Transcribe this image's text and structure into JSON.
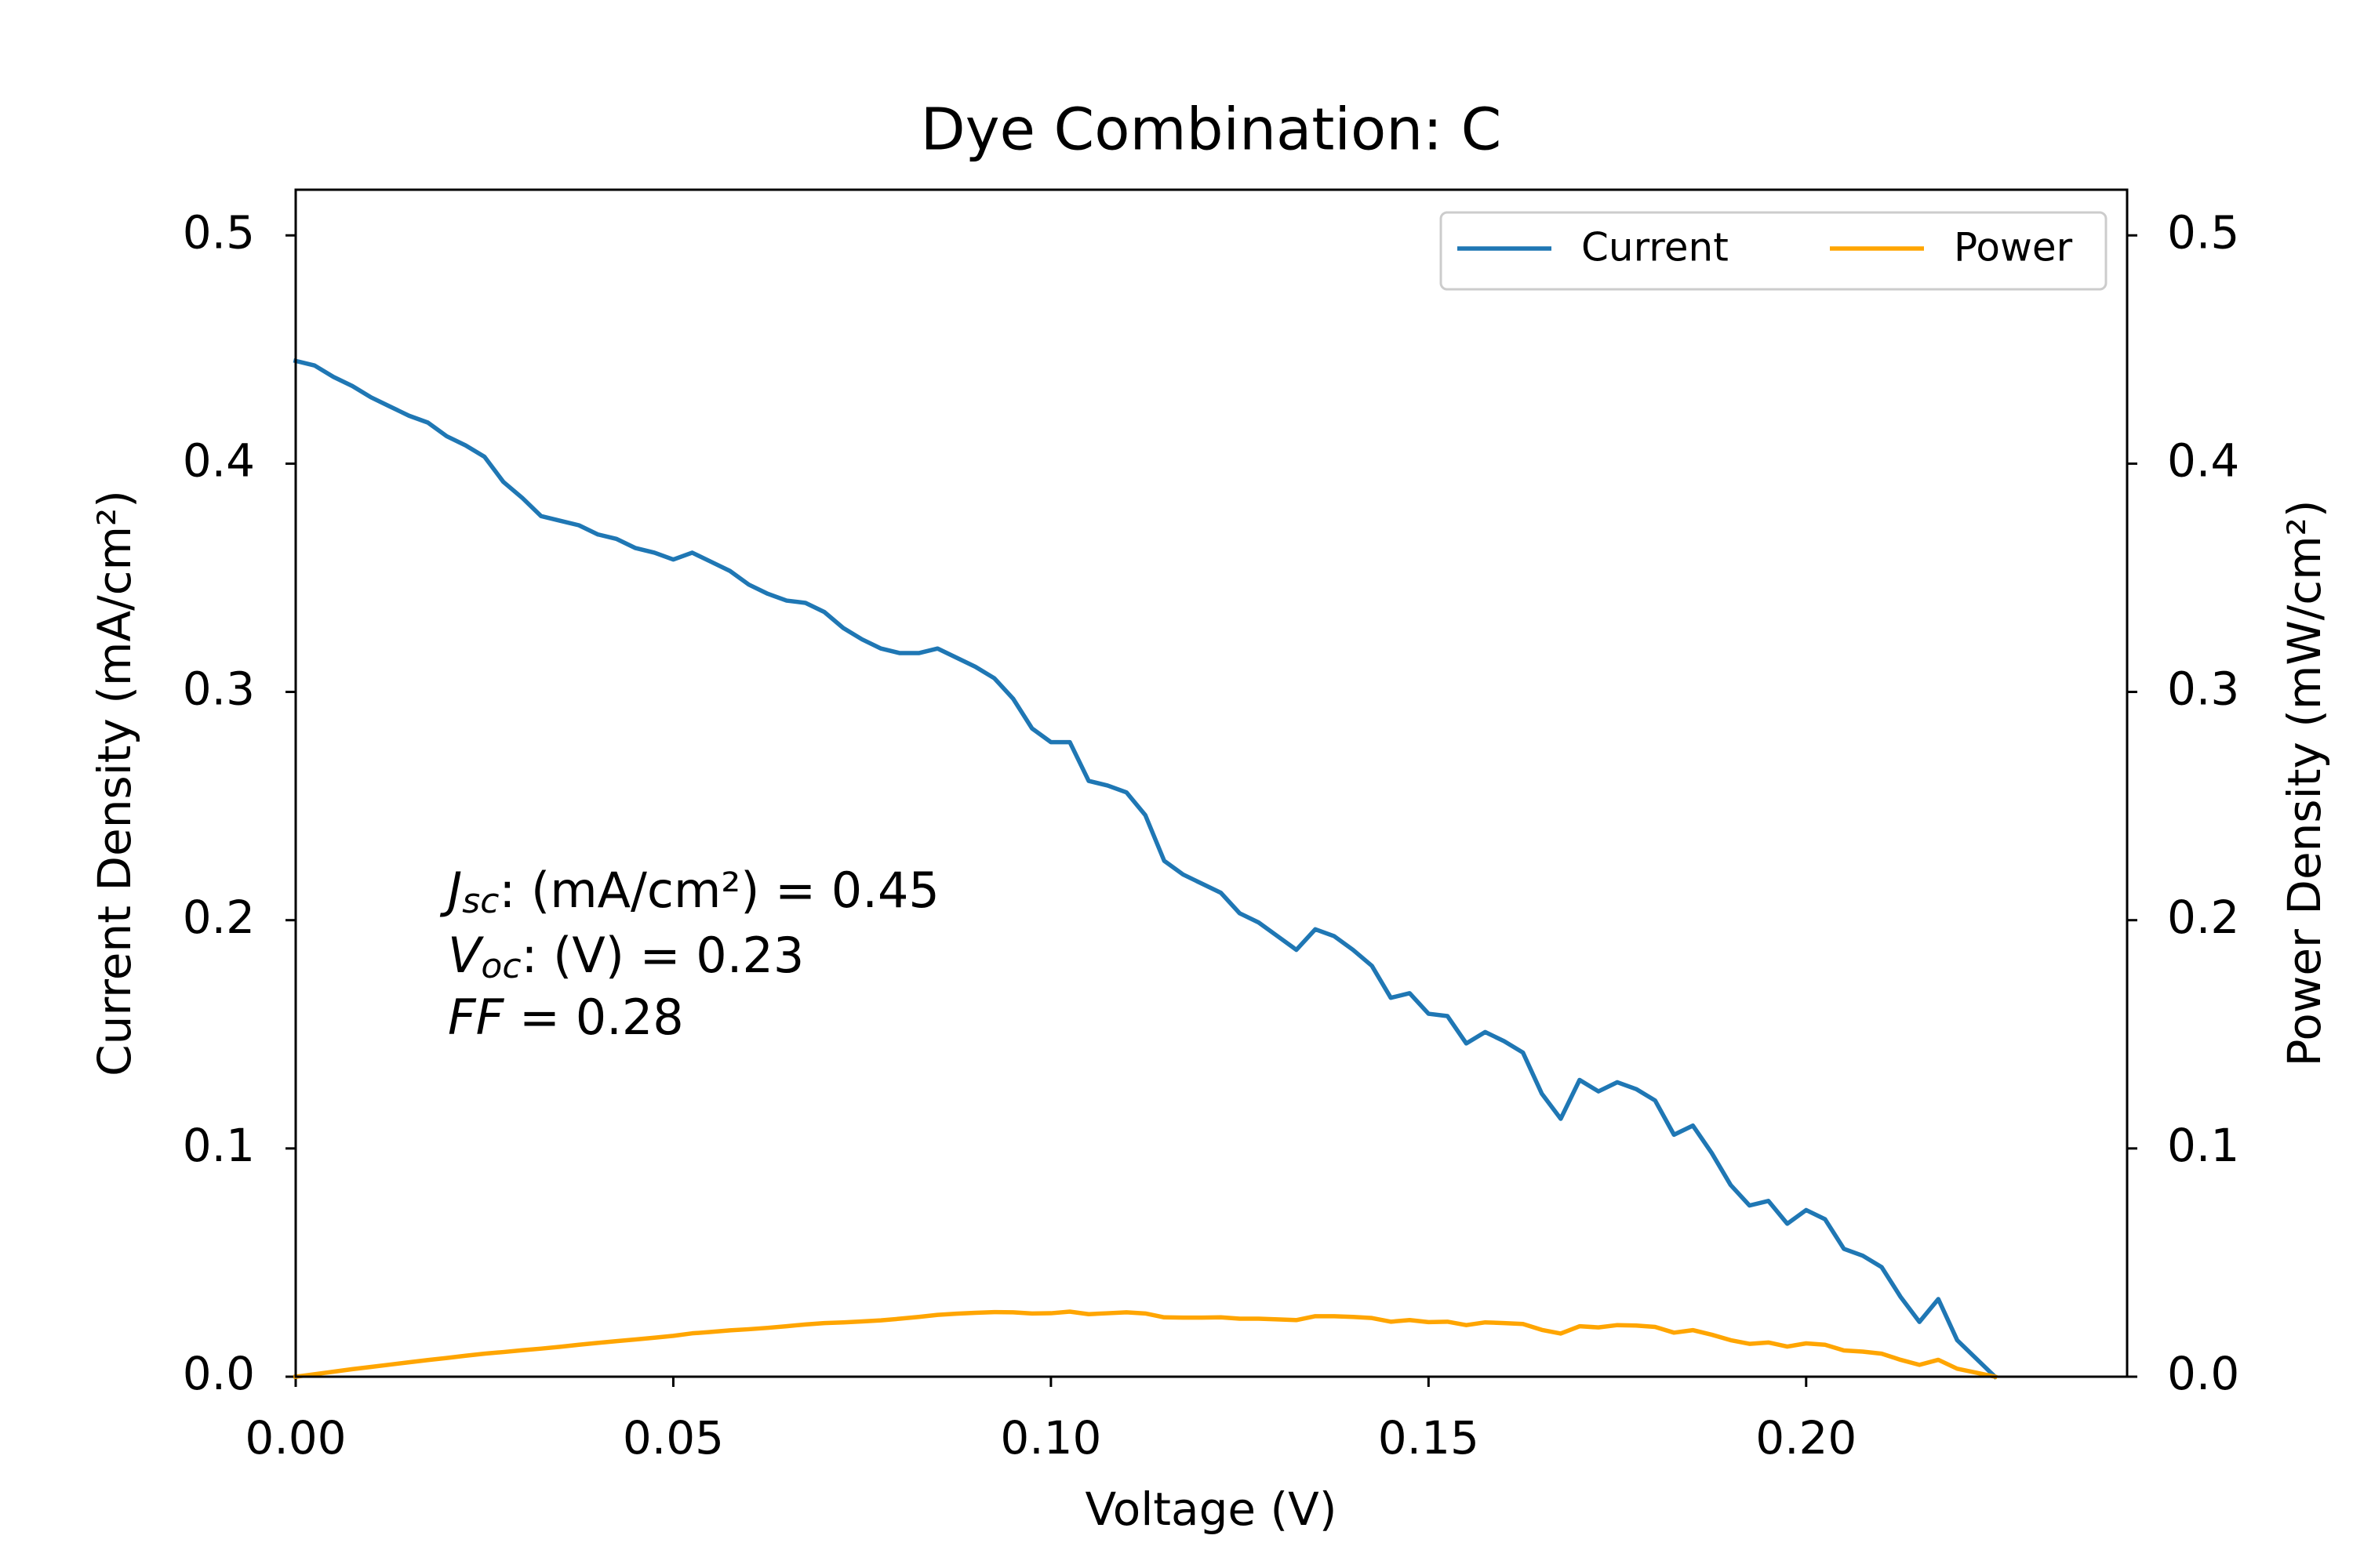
{
  "chart_data": {
    "type": "line",
    "title": "Dye Combination: C",
    "xlabel": "Voltage (V)",
    "ylabel": "Current Density (mA/cm²)",
    "y2label": "Power Density (mW/cm²)",
    "xlim": [
      0,
      0.2425
    ],
    "ylim": [
      0,
      0.52
    ],
    "y2lim": [
      0,
      0.52
    ],
    "xticks": [
      {
        "value": 0,
        "label": "0.00"
      },
      {
        "value": 0.05,
        "label": "0.05"
      },
      {
        "value": 0.1,
        "label": "0.10"
      },
      {
        "value": 0.15,
        "label": "0.15"
      },
      {
        "value": 0.2,
        "label": "0.20"
      }
    ],
    "yticks": [
      {
        "value": 0,
        "label": "0.0"
      },
      0.1,
      0.2,
      0.3,
      0.4,
      0.5
    ],
    "y2ticks": [
      {
        "value": 0,
        "label": "0.0"
      },
      0.1,
      0.2,
      0.3,
      0.4,
      0.5
    ],
    "grid": false,
    "legend": "upper right",
    "annotations": [
      {
        "main": "J",
        "sub": "sc",
        "rest": ": (mA/cm²) = 0.45"
      },
      {
        "main": "V",
        "sub": "oc",
        "rest": ": (V) = 0.23"
      },
      {
        "main": "FF",
        "rest": " = 0.28"
      }
    ],
    "x": [
      0,
      0.0025,
      0.005,
      0.0075,
      0.01,
      0.0125,
      0.015,
      0.0175,
      0.02,
      0.0225,
      0.025,
      0.0275,
      0.03,
      0.0325,
      0.035,
      0.0375,
      0.04,
      0.0425,
      0.045,
      0.0475,
      0.05,
      0.0525,
      0.055,
      0.0575,
      0.06,
      0.0625,
      0.065,
      0.0675,
      0.07,
      0.0725,
      0.075,
      0.0775,
      0.08,
      0.0825,
      0.085,
      0.0875,
      0.09,
      0.0925,
      0.095,
      0.0975,
      0.1,
      0.1025,
      0.105,
      0.1075,
      0.11,
      0.1125,
      0.115,
      0.1175,
      0.12,
      0.1225,
      0.125,
      0.1275,
      0.13,
      0.1325,
      0.135,
      0.1375,
      0.14,
      0.1425,
      0.145,
      0.1475,
      0.15,
      0.1525,
      0.155,
      0.1575,
      0.16,
      0.1625,
      0.165,
      0.1675,
      0.17,
      0.1725,
      0.175,
      0.1775,
      0.18,
      0.1825,
      0.185,
      0.1875,
      0.19,
      0.1925,
      0.195,
      0.1975,
      0.2,
      0.2025,
      0.205,
      0.2075,
      0.21,
      0.2125,
      0.215,
      0.2175,
      0.22,
      0.2225,
      0.225
    ],
    "series": [
      {
        "name": "Current",
        "color": "#1f77b4",
        "axis": "y",
        "values": [
          0.445,
          0.443,
          0.438,
          0.434,
          0.429,
          0.425,
          0.421,
          0.418,
          0.412,
          0.408,
          0.403,
          0.392,
          0.385,
          0.377,
          0.375,
          0.373,
          0.369,
          0.367,
          0.363,
          0.361,
          0.358,
          0.361,
          0.357,
          0.353,
          0.347,
          0.343,
          0.34,
          0.339,
          0.335,
          0.328,
          0.323,
          0.319,
          0.317,
          0.317,
          0.319,
          0.315,
          0.311,
          0.306,
          0.297,
          0.284,
          0.278,
          0.278,
          0.261,
          0.259,
          0.256,
          0.246,
          0.226,
          0.22,
          0.216,
          0.212,
          0.203,
          0.199,
          0.193,
          0.187,
          0.196,
          0.193,
          0.187,
          0.18,
          0.166,
          0.168,
          0.159,
          0.158,
          0.146,
          0.151,
          0.147,
          0.142,
          0.124,
          0.113,
          0.13,
          0.125,
          0.129,
          0.126,
          0.121,
          0.106,
          0.11,
          0.098,
          0.084,
          0.075,
          0.077,
          0.067,
          0.073,
          0.069,
          0.056,
          0.053,
          0.048,
          0.035,
          0.024,
          0.034,
          0.016,
          0.008,
          0
        ]
      },
      {
        "name": "Power",
        "color": "#ffa500",
        "axis": "y2",
        "values": [
          0,
          0.0011,
          0.0022,
          0.0033,
          0.0043,
          0.0053,
          0.0063,
          0.0073,
          0.0082,
          0.0092,
          0.0101,
          0.0108,
          0.0116,
          0.0123,
          0.0131,
          0.014,
          0.0148,
          0.0156,
          0.0163,
          0.0171,
          0.0179,
          0.019,
          0.0196,
          0.0203,
          0.0208,
          0.0214,
          0.0221,
          0.0229,
          0.0235,
          0.0238,
          0.0242,
          0.0247,
          0.0254,
          0.0262,
          0.0271,
          0.0276,
          0.028,
          0.0283,
          0.0282,
          0.0277,
          0.0278,
          0.0285,
          0.0274,
          0.0278,
          0.0282,
          0.0277,
          0.026,
          0.0259,
          0.0259,
          0.026,
          0.0254,
          0.0254,
          0.0251,
          0.0248,
          0.0265,
          0.0265,
          0.0262,
          0.0257,
          0.0241,
          0.0248,
          0.0239,
          0.0241,
          0.0226,
          0.0238,
          0.0235,
          0.0231,
          0.0205,
          0.0189,
          0.0221,
          0.0216,
          0.0226,
          0.0224,
          0.0218,
          0.0193,
          0.0204,
          0.0184,
          0.016,
          0.0144,
          0.015,
          0.0132,
          0.0146,
          0.014,
          0.0115,
          0.011,
          0.0101,
          0.0074,
          0.0052,
          0.0074,
          0.0035,
          0.0018,
          0
        ]
      }
    ]
  }
}
